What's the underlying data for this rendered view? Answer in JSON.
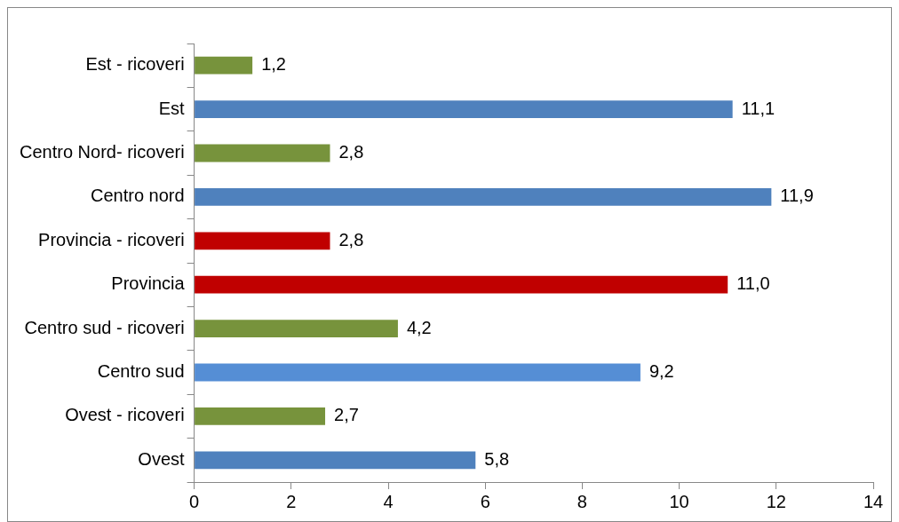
{
  "chart_data": {
    "type": "bar",
    "orientation": "horizontal",
    "categories": [
      "Est - ricoveri",
      "Est",
      "Centro Nord- ricoveri",
      "Centro nord",
      "Provincia - ricoveri",
      "Provincia",
      "Centro sud - ricoveri",
      "Centro sud",
      "Ovest - ricoveri",
      "Ovest"
    ],
    "values": [
      1.2,
      11.1,
      2.8,
      11.9,
      2.8,
      11.0,
      4.2,
      9.2,
      2.7,
      5.8
    ],
    "colors": [
      "#77933c",
      "#4f81bd",
      "#77933c",
      "#4f81bd",
      "#c00000",
      "#c00000",
      "#77933c",
      "#558ed5",
      "#77933c",
      "#4f81bd"
    ],
    "value_labels": [
      "1,2",
      "11,1",
      "2,8",
      "11,9",
      "2,8",
      "11,0",
      "4,2",
      "9,2",
      "2,7",
      "5,8"
    ],
    "xlim": [
      0,
      14
    ],
    "xticks": [
      0,
      2,
      4,
      6,
      8,
      10,
      12,
      14
    ],
    "grid": false,
    "legend": false
  }
}
